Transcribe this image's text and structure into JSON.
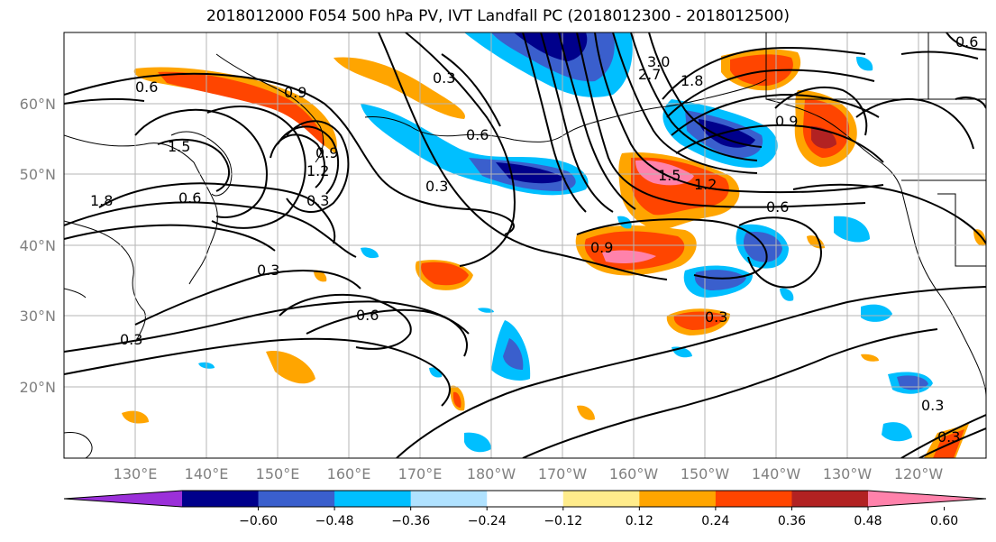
{
  "title": "2018012000 F054 500 hPa PV, IVT Landfall PC (2018012300 - 2018012500)",
  "map": {
    "lat_labels": [
      "60°N",
      "50°N",
      "40°N",
      "30°N",
      "20°N"
    ],
    "lon_labels": [
      "130°E",
      "140°E",
      "150°E",
      "160°E",
      "170°E",
      "180°W",
      "170°W",
      "160°W",
      "150°W",
      "140°W",
      "130°W",
      "120°W"
    ],
    "contour_labels": [
      "0.6",
      "0.9",
      "0.3",
      "0.6",
      "0.3",
      "3.0",
      "2.7",
      "1.8",
      "0.9",
      "0.6",
      "1.5",
      "1.2",
      "0.9",
      "0.6",
      "0.3",
      "0.3",
      "0.6",
      "0.3",
      "0.3",
      "0.3",
      "0.6",
      "0.3",
      "1.8",
      "1.5",
      "1.2",
      "0.9"
    ]
  },
  "colorbar": {
    "colors": [
      "#9b30d9",
      "#00008b",
      "#3a5fcd",
      "#00bfff",
      "#b0e2ff",
      "#ffffff",
      "#ffec8b",
      "#ffa500",
      "#ff4500",
      "#b22222",
      "#ff82ab"
    ],
    "tick_labels": [
      "−0.60",
      "−0.48",
      "−0.36",
      "−0.24",
      "−0.12",
      "0.12",
      "0.24",
      "0.36",
      "0.48",
      "0.60"
    ]
  }
}
